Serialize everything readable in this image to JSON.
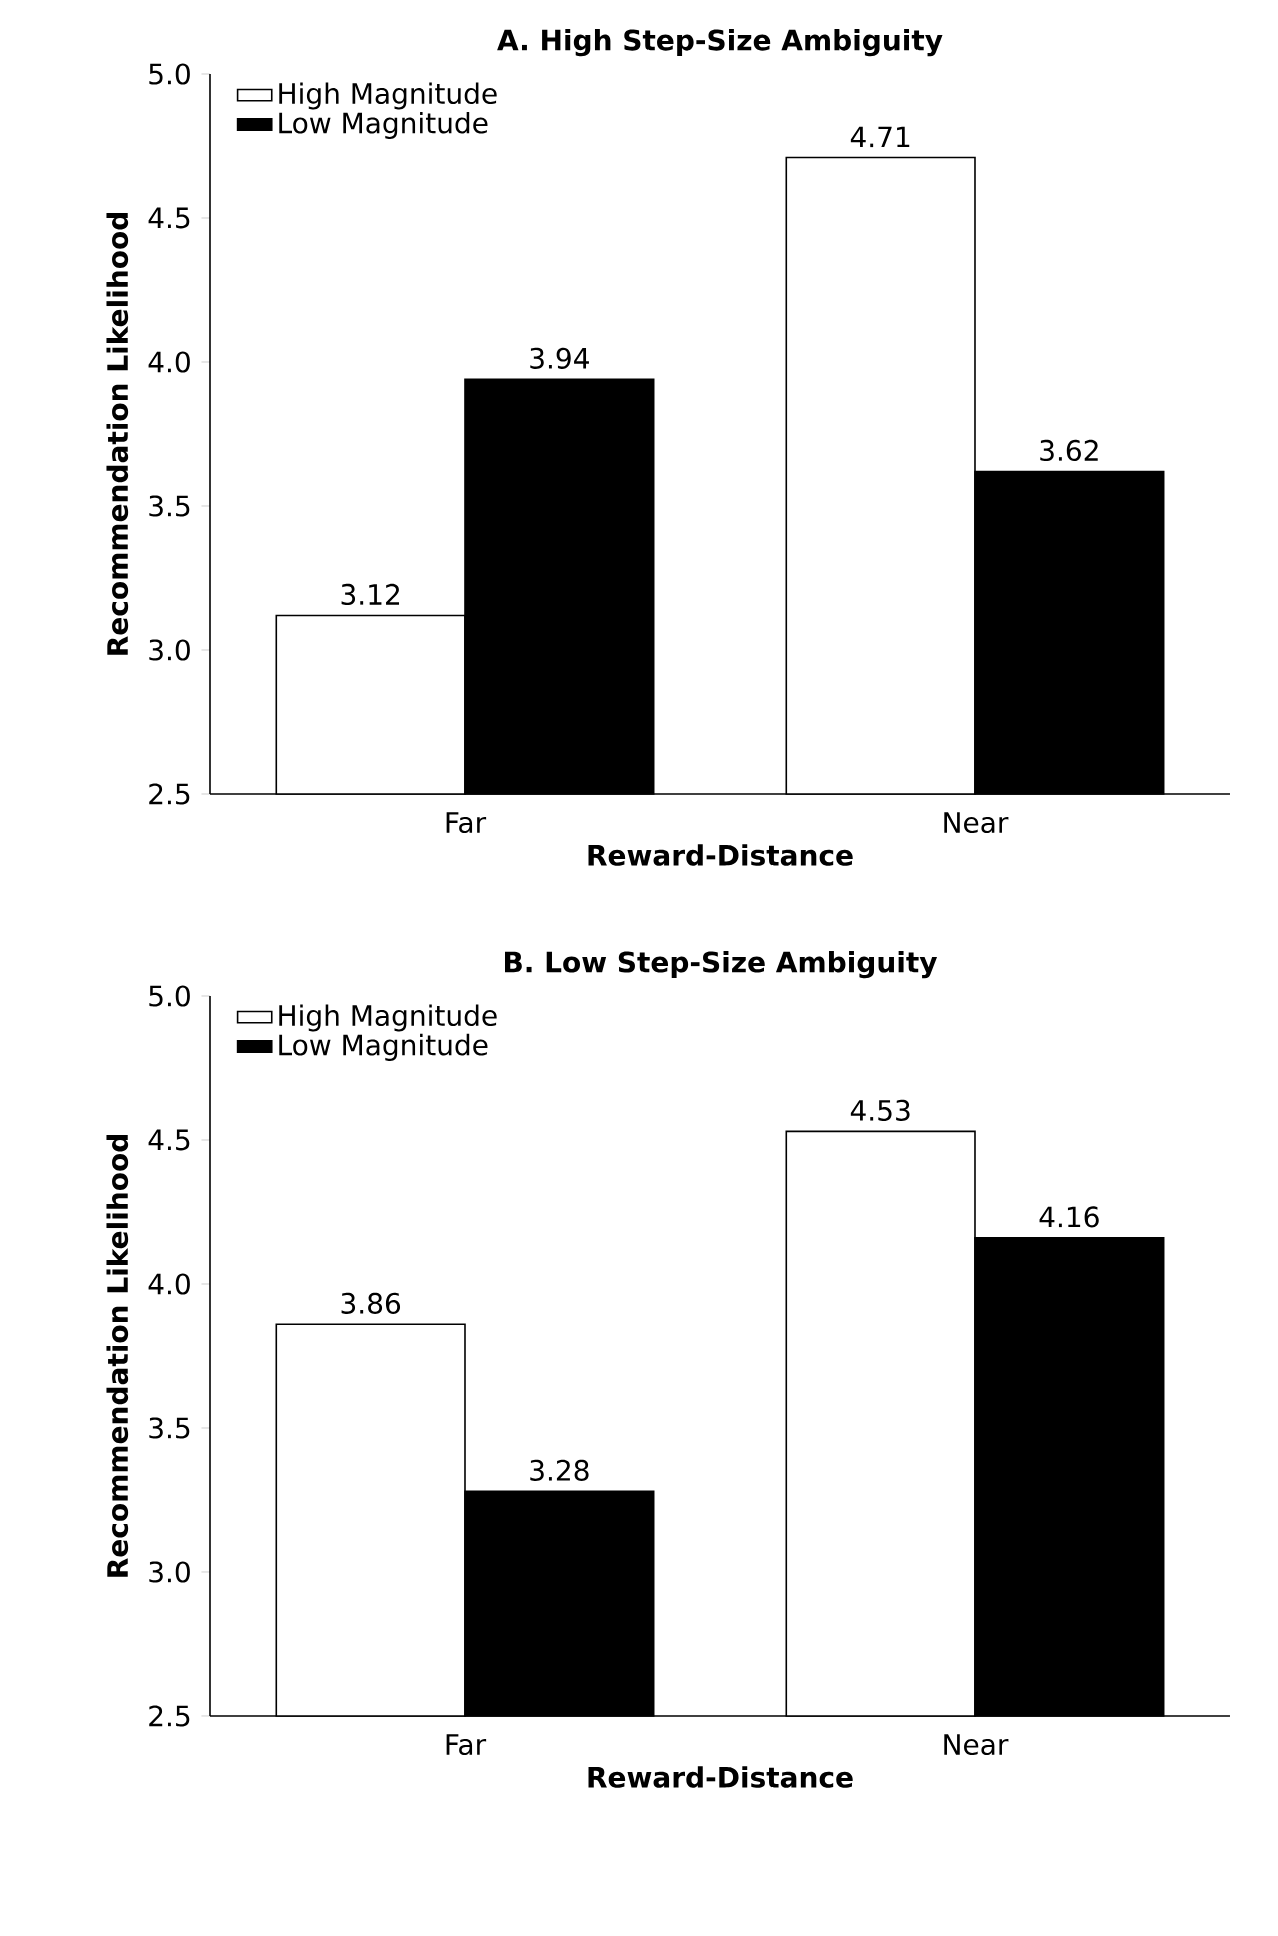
{
  "chart_data": [
    {
      "type": "bar",
      "title": "A. High Step-Size Ambiguity",
      "xlabel": "Reward-Distance",
      "ylabel": "Recommendation Likelihood",
      "categories": [
        "Far",
        "Near"
      ],
      "series": [
        {
          "name": "High Magnitude",
          "color": "#ffffff",
          "values": [
            3.12,
            4.71
          ]
        },
        {
          "name": "Low Magnitude",
          "color": "#000000",
          "values": [
            3.94,
            3.62
          ]
        }
      ],
      "ylim": [
        2.5,
        5.0
      ],
      "yticks": [
        2.5,
        {
          "value": 3,
          "label": "3.0"
        },
        3.5,
        {
          "value": 4,
          "label": "4.0"
        },
        4.5,
        {
          "value": 5,
          "label": "5.0"
        }
      ],
      "data_labels": true,
      "legend": "top left",
      "grid": false
    },
    {
      "type": "bar",
      "title": "B. Low Step-Size Ambiguity",
      "xlabel": "Reward-Distance",
      "ylabel": "Recommendation Likelihood",
      "categories": [
        "Far",
        "Near"
      ],
      "series": [
        {
          "name": "High Magnitude",
          "color": "#ffffff",
          "values": [
            3.86,
            4.53
          ]
        },
        {
          "name": "Low Magnitude",
          "color": "#000000",
          "values": [
            3.28,
            4.16
          ]
        }
      ],
      "ylim": [
        2.5,
        5.0
      ],
      "yticks": [
        2.5,
        {
          "value": 3,
          "label": "3.0"
        },
        3.5,
        {
          "value": 4,
          "label": "4.0"
        },
        4.5,
        {
          "value": 5,
          "label": "5.0"
        }
      ],
      "data_labels": true,
      "legend": "top left",
      "grid": false
    }
  ]
}
